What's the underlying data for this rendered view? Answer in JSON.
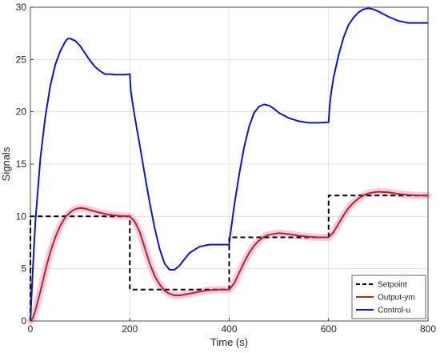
{
  "chart_data": {
    "type": "line",
    "title": "",
    "xlabel": "Time (s)",
    "ylabel": "Signals",
    "xlim": [
      0,
      800
    ],
    "ylim": [
      0,
      30
    ],
    "xticks": [
      0,
      200,
      400,
      600,
      800
    ],
    "yticks": [
      0,
      5,
      10,
      15,
      20,
      25,
      30
    ],
    "grid": true,
    "legend_position": "bottom-right",
    "series": [
      {
        "name": "Setpoint",
        "color": "#000000",
        "style": "dashed",
        "x": [
          0,
          0,
          200,
          200,
          400,
          400,
          600,
          600,
          800
        ],
        "y": [
          0,
          10,
          10,
          3,
          3,
          8,
          8,
          12,
          12
        ]
      },
      {
        "name": "Output-ym",
        "color": "#b8290f",
        "style": "solid",
        "x": [
          0,
          5,
          10,
          20,
          30,
          40,
          50,
          60,
          70,
          80,
          90,
          100,
          110,
          120,
          140,
          160,
          180,
          200,
          210,
          220,
          230,
          240,
          250,
          260,
          270,
          280,
          290,
          300,
          320,
          340,
          360,
          380,
          400,
          410,
          420,
          430,
          440,
          450,
          460,
          470,
          480,
          500,
          520,
          540,
          560,
          580,
          600,
          610,
          620,
          630,
          640,
          650,
          660,
          670,
          680,
          690,
          700,
          720,
          740,
          760,
          780,
          800
        ],
        "y": [
          0,
          0.3,
          1.0,
          2.8,
          4.8,
          6.6,
          8.0,
          9.1,
          9.9,
          10.4,
          10.7,
          10.8,
          10.75,
          10.6,
          10.35,
          10.15,
          10.05,
          10.0,
          9.5,
          8.5,
          7.0,
          5.5,
          4.3,
          3.5,
          2.9,
          2.6,
          2.45,
          2.45,
          2.6,
          2.8,
          2.95,
          3.0,
          3.0,
          3.6,
          4.6,
          5.6,
          6.5,
          7.2,
          7.7,
          8.05,
          8.25,
          8.4,
          8.3,
          8.15,
          8.05,
          8.0,
          8.0,
          8.5,
          9.3,
          10.1,
          10.8,
          11.3,
          11.7,
          12.0,
          12.2,
          12.3,
          12.35,
          12.3,
          12.15,
          12.05,
          12.0,
          12.0
        ]
      },
      {
        "name": "Control-u",
        "color": "#0a14d8",
        "style": "solid",
        "x": [
          0,
          2,
          5,
          10,
          20,
          30,
          40,
          50,
          60,
          70,
          75,
          80,
          90,
          100,
          110,
          120,
          130,
          140,
          150,
          160,
          170,
          180,
          190,
          200,
          202,
          205,
          210,
          220,
          230,
          240,
          250,
          260,
          270,
          280,
          290,
          300,
          310,
          320,
          340,
          360,
          380,
          400,
          402,
          405,
          410,
          420,
          430,
          440,
          450,
          460,
          470,
          480,
          490,
          500,
          520,
          540,
          560,
          580,
          600,
          602,
          605,
          610,
          620,
          630,
          640,
          650,
          660,
          670,
          680,
          690,
          700,
          720,
          740,
          760,
          780,
          800
        ],
        "y": [
          0,
          2.0,
          5.0,
          9.5,
          15.5,
          19.5,
          22.5,
          24.5,
          25.8,
          26.7,
          27.0,
          27.0,
          26.8,
          26.3,
          25.6,
          24.9,
          24.3,
          23.9,
          23.6,
          23.6,
          23.55,
          23.55,
          23.55,
          23.6,
          22.0,
          21.0,
          19.5,
          16.8,
          14.0,
          11.3,
          8.9,
          6.9,
          5.5,
          4.9,
          4.9,
          5.3,
          5.9,
          6.5,
          7.1,
          7.3,
          7.3,
          7.3,
          8.2,
          9.2,
          11.0,
          14.0,
          16.6,
          18.6,
          19.9,
          20.5,
          20.7,
          20.6,
          20.3,
          19.9,
          19.4,
          19.1,
          18.95,
          18.95,
          19.0,
          20.5,
          21.8,
          23.3,
          25.4,
          27.1,
          28.3,
          29.0,
          29.5,
          29.8,
          29.9,
          29.8,
          29.6,
          29.1,
          28.7,
          28.5,
          28.5,
          28.5
        ]
      }
    ]
  }
}
